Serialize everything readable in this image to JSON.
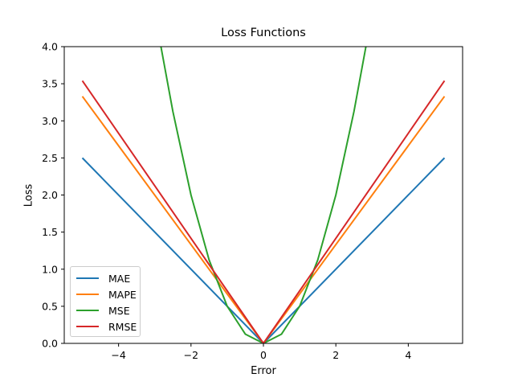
{
  "chart_data": {
    "type": "line",
    "title": "Loss Functions",
    "xlabel": "Error",
    "ylabel": "Loss",
    "xlim": [
      -5.5,
      5.5
    ],
    "ylim": [
      0.0,
      4.0
    ],
    "xticks": [
      -4,
      -2,
      0,
      2,
      4
    ],
    "xtick_labels": [
      "−4",
      "−2",
      "0",
      "2",
      "4"
    ],
    "yticks": [
      0.0,
      0.5,
      1.0,
      1.5,
      2.0,
      2.5,
      3.0,
      3.5,
      4.0
    ],
    "ytick_labels": [
      "0.0",
      "0.5",
      "1.0",
      "1.5",
      "2.0",
      "2.5",
      "3.0",
      "3.5",
      "4.0"
    ],
    "grid": false,
    "legend_position": "lower-left",
    "series": [
      {
        "name": "MAE",
        "color": "#1f77b4",
        "x": [
          -5,
          0,
          5
        ],
        "y": [
          2.5,
          0,
          2.5
        ]
      },
      {
        "name": "MAPE",
        "color": "#ff7f0e",
        "x": [
          -5,
          0,
          5
        ],
        "y": [
          3.33,
          0,
          3.33
        ]
      },
      {
        "name": "MSE",
        "color": "#2ca02c",
        "x": [
          -2.83,
          -2.5,
          -2.0,
          -1.5,
          -1.0,
          -0.5,
          0,
          0.5,
          1.0,
          1.5,
          2.0,
          2.5,
          2.83
        ],
        "y": [
          4.0,
          3.125,
          2.0,
          1.125,
          0.5,
          0.125,
          0,
          0.125,
          0.5,
          1.125,
          2.0,
          3.125,
          4.0
        ]
      },
      {
        "name": "RMSE",
        "color": "#d62728",
        "x": [
          -5,
          0,
          5
        ],
        "y": [
          3.54,
          0,
          3.54
        ]
      }
    ]
  }
}
